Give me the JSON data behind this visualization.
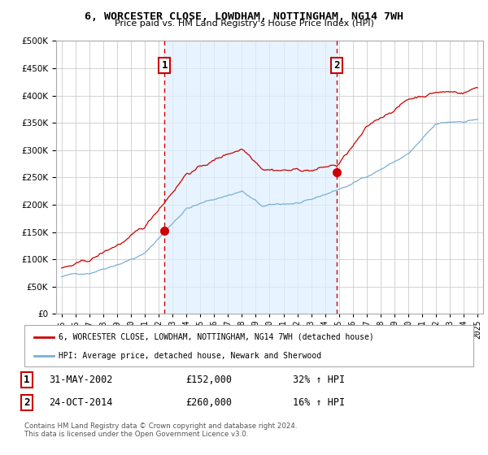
{
  "title": "6, WORCESTER CLOSE, LOWDHAM, NOTTINGHAM, NG14 7WH",
  "subtitle": "Price paid vs. HM Land Registry's House Price Index (HPI)",
  "legend_line1": "6, WORCESTER CLOSE, LOWDHAM, NOTTINGHAM, NG14 7WH (detached house)",
  "legend_line2": "HPI: Average price, detached house, Newark and Sherwood",
  "annotation1_label": "1",
  "annotation1_date": "31-MAY-2002",
  "annotation1_price": "£152,000",
  "annotation1_hpi": "32% ↑ HPI",
  "annotation1_year": 2002.42,
  "annotation1_value": 152000,
  "annotation2_label": "2",
  "annotation2_date": "24-OCT-2014",
  "annotation2_price": "£260,000",
  "annotation2_hpi": "16% ↑ HPI",
  "annotation2_year": 2014.83,
  "annotation2_value": 260000,
  "footnote": "Contains HM Land Registry data © Crown copyright and database right 2024.\nThis data is licensed under the Open Government Licence v3.0.",
  "hpi_color": "#7ab0d4",
  "sale_color": "#cc0000",
  "vline_color": "#cc0000",
  "shade_color": "#ddeeff",
  "background_color": "#ffffff",
  "grid_color": "#cccccc",
  "ylim": [
    0,
    500000
  ],
  "yticks": [
    0,
    50000,
    100000,
    150000,
    200000,
    250000,
    300000,
    350000,
    400000,
    450000,
    500000
  ],
  "xlim_start": 1994.6,
  "xlim_end": 2025.4
}
